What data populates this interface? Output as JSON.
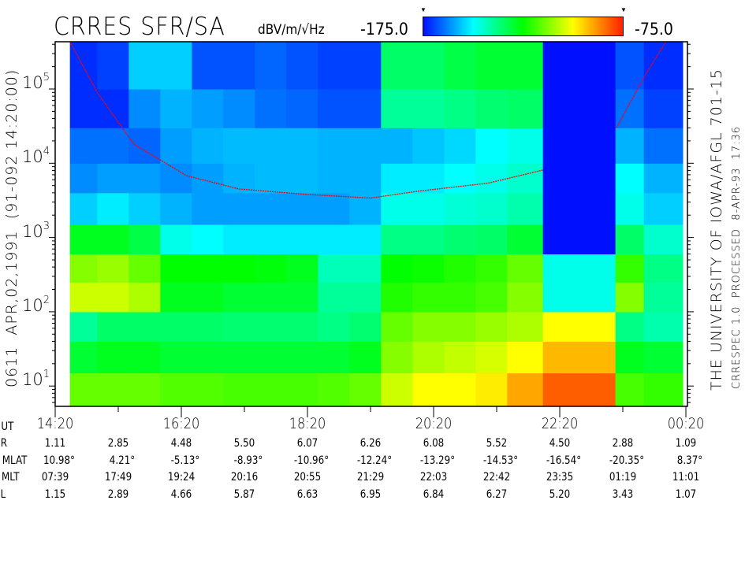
{
  "header": {
    "title": "CRRES SFR/SA",
    "units": "dBV/m/√Hz",
    "color_min_label": "-175.0",
    "color_max_label": "-75.0"
  },
  "side_labels": {
    "left": "0611  APR,02,1991  (91-092 14:20:00)",
    "right_main": "THE UNIVERSITY OF IOWA/AFGL 701-15",
    "right_sub": "CRRESPEC 1.0  PROCESSED  8-APR-93  17:36"
  },
  "chart_data": {
    "type": "heatmap",
    "title": "CRRES SFR/SA",
    "colorbar_label": "dBV/m/√Hz",
    "color_range": [
      -175.0,
      -75.0
    ],
    "colorscale": [
      {
        "value": -175,
        "color": "#0010ff"
      },
      {
        "value": -150,
        "color": "#00ffff"
      },
      {
        "value": -125,
        "color": "#00ff00"
      },
      {
        "value": -100,
        "color": "#ffff00"
      },
      {
        "value": -75,
        "color": "#ff2000"
      }
    ],
    "y_scale": "log",
    "ylim": [
      5.3,
      440000
    ],
    "yticks": [
      {
        "base": "10",
        "exp": "1",
        "value": 10
      },
      {
        "base": "10",
        "exp": "2",
        "value": 100
      },
      {
        "base": "10",
        "exp": "3",
        "value": 1000
      },
      {
        "base": "10",
        "exp": "4",
        "value": 10000
      },
      {
        "base": "10",
        "exp": "5",
        "value": 100000
      }
    ],
    "xlim": [
      "14:20",
      "00:20"
    ],
    "xtick_labels": [
      "14:20",
      "16:20",
      "18:20",
      "20:20",
      "22:20",
      "00:20"
    ],
    "time_bins": [
      "14:34",
      "15:00",
      "15:30",
      "16:00",
      "16:30",
      "17:00",
      "17:30",
      "18:00",
      "18:30",
      "19:00",
      "19:30",
      "20:00",
      "20:30",
      "21:00",
      "21:30",
      "22:04",
      "23:13",
      "23:40",
      "00:17"
    ],
    "freq_bins_hz": [
      5.3,
      15,
      40,
      100,
      250,
      600,
      1500,
      4000,
      10000,
      30000,
      100000,
      440000
    ],
    "values_db": [
      [
        -115,
        -115,
        -115,
        -117,
        -117,
        -118,
        -118,
        -118,
        -117,
        -115,
        -105,
        -100,
        -100,
        -98,
        -90,
        -82,
        -118,
        -120
      ],
      [
        -130,
        -128,
        -128,
        -130,
        -130,
        -130,
        -130,
        -130,
        -130,
        -128,
        -112,
        -108,
        -106,
        -104,
        -100,
        -92,
        -128,
        -130
      ],
      [
        -140,
        -135,
        -135,
        -135,
        -135,
        -136,
        -136,
        -136,
        -138,
        -136,
        -115,
        -112,
        -112,
        -110,
        -108,
        -100,
        -138,
        -142
      ],
      [
        -105,
        -105,
        -108,
        -128,
        -128,
        -130,
        -130,
        -130,
        -140,
        -140,
        -122,
        -120,
        -120,
        -118,
        -112,
        -148,
        -112,
        -140
      ],
      [
        -112,
        -110,
        -115,
        -125,
        -125,
        -125,
        -126,
        -128,
        -143,
        -143,
        -125,
        -124,
        -122,
        -120,
        -115,
        -148,
        -120,
        -138
      ],
      [
        -128,
        -128,
        -132,
        -148,
        -150,
        -152,
        -152,
        -152,
        -152,
        -152,
        -138,
        -138,
        -136,
        -135,
        -130,
        -175,
        -135,
        -145
      ],
      [
        -155,
        -152,
        -155,
        -158,
        -160,
        -160,
        -160,
        -160,
        -160,
        -158,
        -148,
        -148,
        -146,
        -145,
        -142,
        -175,
        -148,
        -155
      ],
      [
        -162,
        -160,
        -160,
        -162,
        -160,
        -158,
        -157,
        -157,
        -158,
        -158,
        -152,
        -152,
        -150,
        -148,
        -145,
        -175,
        -150,
        -158
      ],
      [
        -165,
        -165,
        -166,
        -160,
        -158,
        -157,
        -157,
        -157,
        -158,
        -158,
        -158,
        -156,
        -154,
        -150,
        -148,
        -175,
        -158,
        -165
      ],
      [
        -172,
        -172,
        -162,
        -158,
        -160,
        -162,
        -165,
        -166,
        -168,
        -168,
        -140,
        -140,
        -138,
        -136,
        -135,
        -175,
        -165,
        -170
      ],
      [
        -172,
        -170,
        -155,
        -155,
        -168,
        -168,
        -166,
        -168,
        -170,
        -170,
        -135,
        -135,
        -132,
        -130,
        -130,
        -175,
        -168,
        -172
      ]
    ],
    "gyrofrequency_line": {
      "color": "#ff0000",
      "points": [
        {
          "ut": "14:34",
          "hz": 440000
        },
        {
          "ut": "15:00",
          "hz": 90000
        },
        {
          "ut": "15:35",
          "hz": 18000
        },
        {
          "ut": "16:25",
          "hz": 6800
        },
        {
          "ut": "17:15",
          "hz": 4500
        },
        {
          "ut": "18:20",
          "hz": 3800
        },
        {
          "ut": "19:20",
          "hz": 3400
        },
        {
          "ut": "20:05",
          "hz": 4200
        },
        {
          "ut": "21:12",
          "hz": 5400
        },
        {
          "ut": "22:04",
          "hz": 8100
        },
        {
          "ut": "23:14",
          "hz": 30000
        },
        {
          "ut": "23:42",
          "hz": 160000
        },
        {
          "ut": "00:01",
          "hz": 440000
        }
      ]
    }
  },
  "ephemeris": {
    "rows": [
      {
        "label": "R",
        "values": [
          "1.11",
          "2.85",
          "4.48",
          "5.50",
          "6.07",
          "6.26",
          "6.08",
          "5.52",
          "4.50",
          "2.88",
          "1.09"
        ]
      },
      {
        "label": "MLAT",
        "values": [
          "10.98°",
          "4.21°",
          "-5.13°",
          "-8.93°",
          "-10.96°",
          "-12.24°",
          "-13.29°",
          "-14.53°",
          "-16.54°",
          "-20.35°",
          "8.37°"
        ]
      },
      {
        "label": "MLT",
        "values": [
          "07:39",
          "17:49",
          "19:24",
          "20:16",
          "20:55",
          "21:29",
          "22:03",
          "22:42",
          "23:35",
          "01:19",
          "11:01"
        ]
      },
      {
        "label": "L",
        "values": [
          "1.15",
          "2.89",
          "4.66",
          "5.87",
          "6.63",
          "6.95",
          "6.84",
          "6.27",
          "5.20",
          "3.43",
          "1.07"
        ]
      }
    ],
    "ut_label": "UT"
  }
}
